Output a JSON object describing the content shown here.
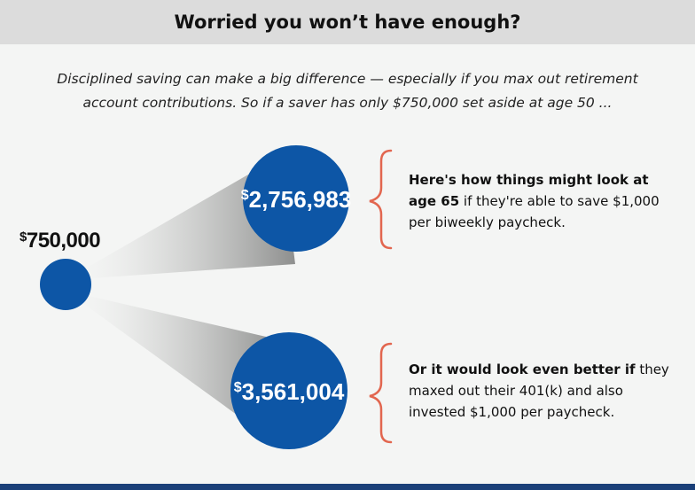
{
  "header": {
    "title": "Worried you won’t have enough?"
  },
  "intro": {
    "text": "Disciplined saving can make a big difference — especially if you max out retirement account contributions. So if a saver has only $750,000 set aside at age 50 ..."
  },
  "start": {
    "dollar": "$",
    "amount": "750,000"
  },
  "outcomes": [
    {
      "dollar": "$",
      "amount": "2,756,983",
      "text_bold": "Here's how things might look at age 65",
      "text_rest": " if they're able to save $1,000 per biweekly paycheck."
    },
    {
      "dollar": "$",
      "amount": "3,561,004",
      "text_bold": "Or it would look even better if",
      "text_rest": " they maxed out their 401(k) and also invested $1,000 per paycheck."
    }
  ],
  "colors": {
    "circle": "#0d56a6",
    "brace": "#e2664f",
    "header_bg": "#dcdcdc",
    "bottom_bar": "#1a3f78"
  }
}
